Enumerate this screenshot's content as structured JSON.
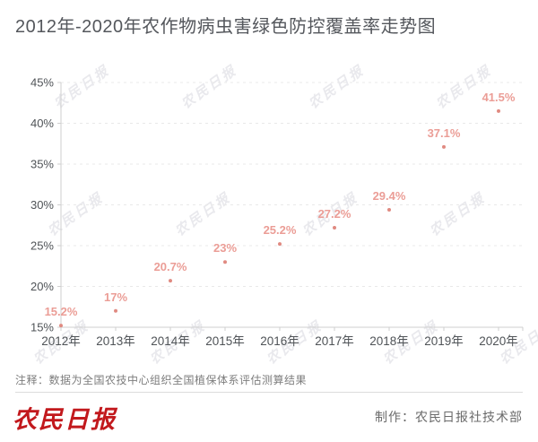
{
  "title": "2012年-2020年农作物病虫害绿色防控覆盖率走势图",
  "chart_data": {
    "type": "scatter",
    "title": "2012年-2020年农作物病虫害绿色防控覆盖率走势图",
    "categories": [
      "2012年",
      "2013年",
      "2014年",
      "2015年",
      "2016年",
      "2017年",
      "2018年",
      "2019年",
      "2020年"
    ],
    "values": [
      15.2,
      17,
      20.7,
      23,
      25.2,
      27.2,
      29.4,
      37.1,
      41.5
    ],
    "point_labels": [
      "15.2%",
      "17%",
      "20.7%",
      "23%",
      "25.2%",
      "27.2%",
      "29.4%",
      "37.1%",
      "41.5%"
    ],
    "xlabel": "",
    "ylabel": "",
    "ylim": [
      15,
      45
    ],
    "yticks": [
      15,
      20,
      25,
      30,
      35,
      40,
      45
    ],
    "ytick_suffix": "%",
    "grid": true,
    "grid_style": "dashed",
    "legend_position": "none",
    "point_color": "#e08a81",
    "point_label_color": "#eb9d96"
  },
  "watermark": {
    "text": "农民日报"
  },
  "note": {
    "text": "注释：数据为全国农技中心组织全国植保体系评估测算结果"
  },
  "footer": {
    "logo_text": "农民日报",
    "credit": "制作：农民日报社技术部"
  },
  "colors": {
    "title_text": "#54575c",
    "axis_text": "#4f5357",
    "axis_line": "#cfcfcf",
    "gridline": "#e9e9e9",
    "watermark_text": "#e9e9ed",
    "note_text": "#7d7d7d",
    "divider": "#dcdcdc",
    "logo_red": "#c2191d",
    "credit_text": "#6b6b6b",
    "background": "#ffffff"
  }
}
